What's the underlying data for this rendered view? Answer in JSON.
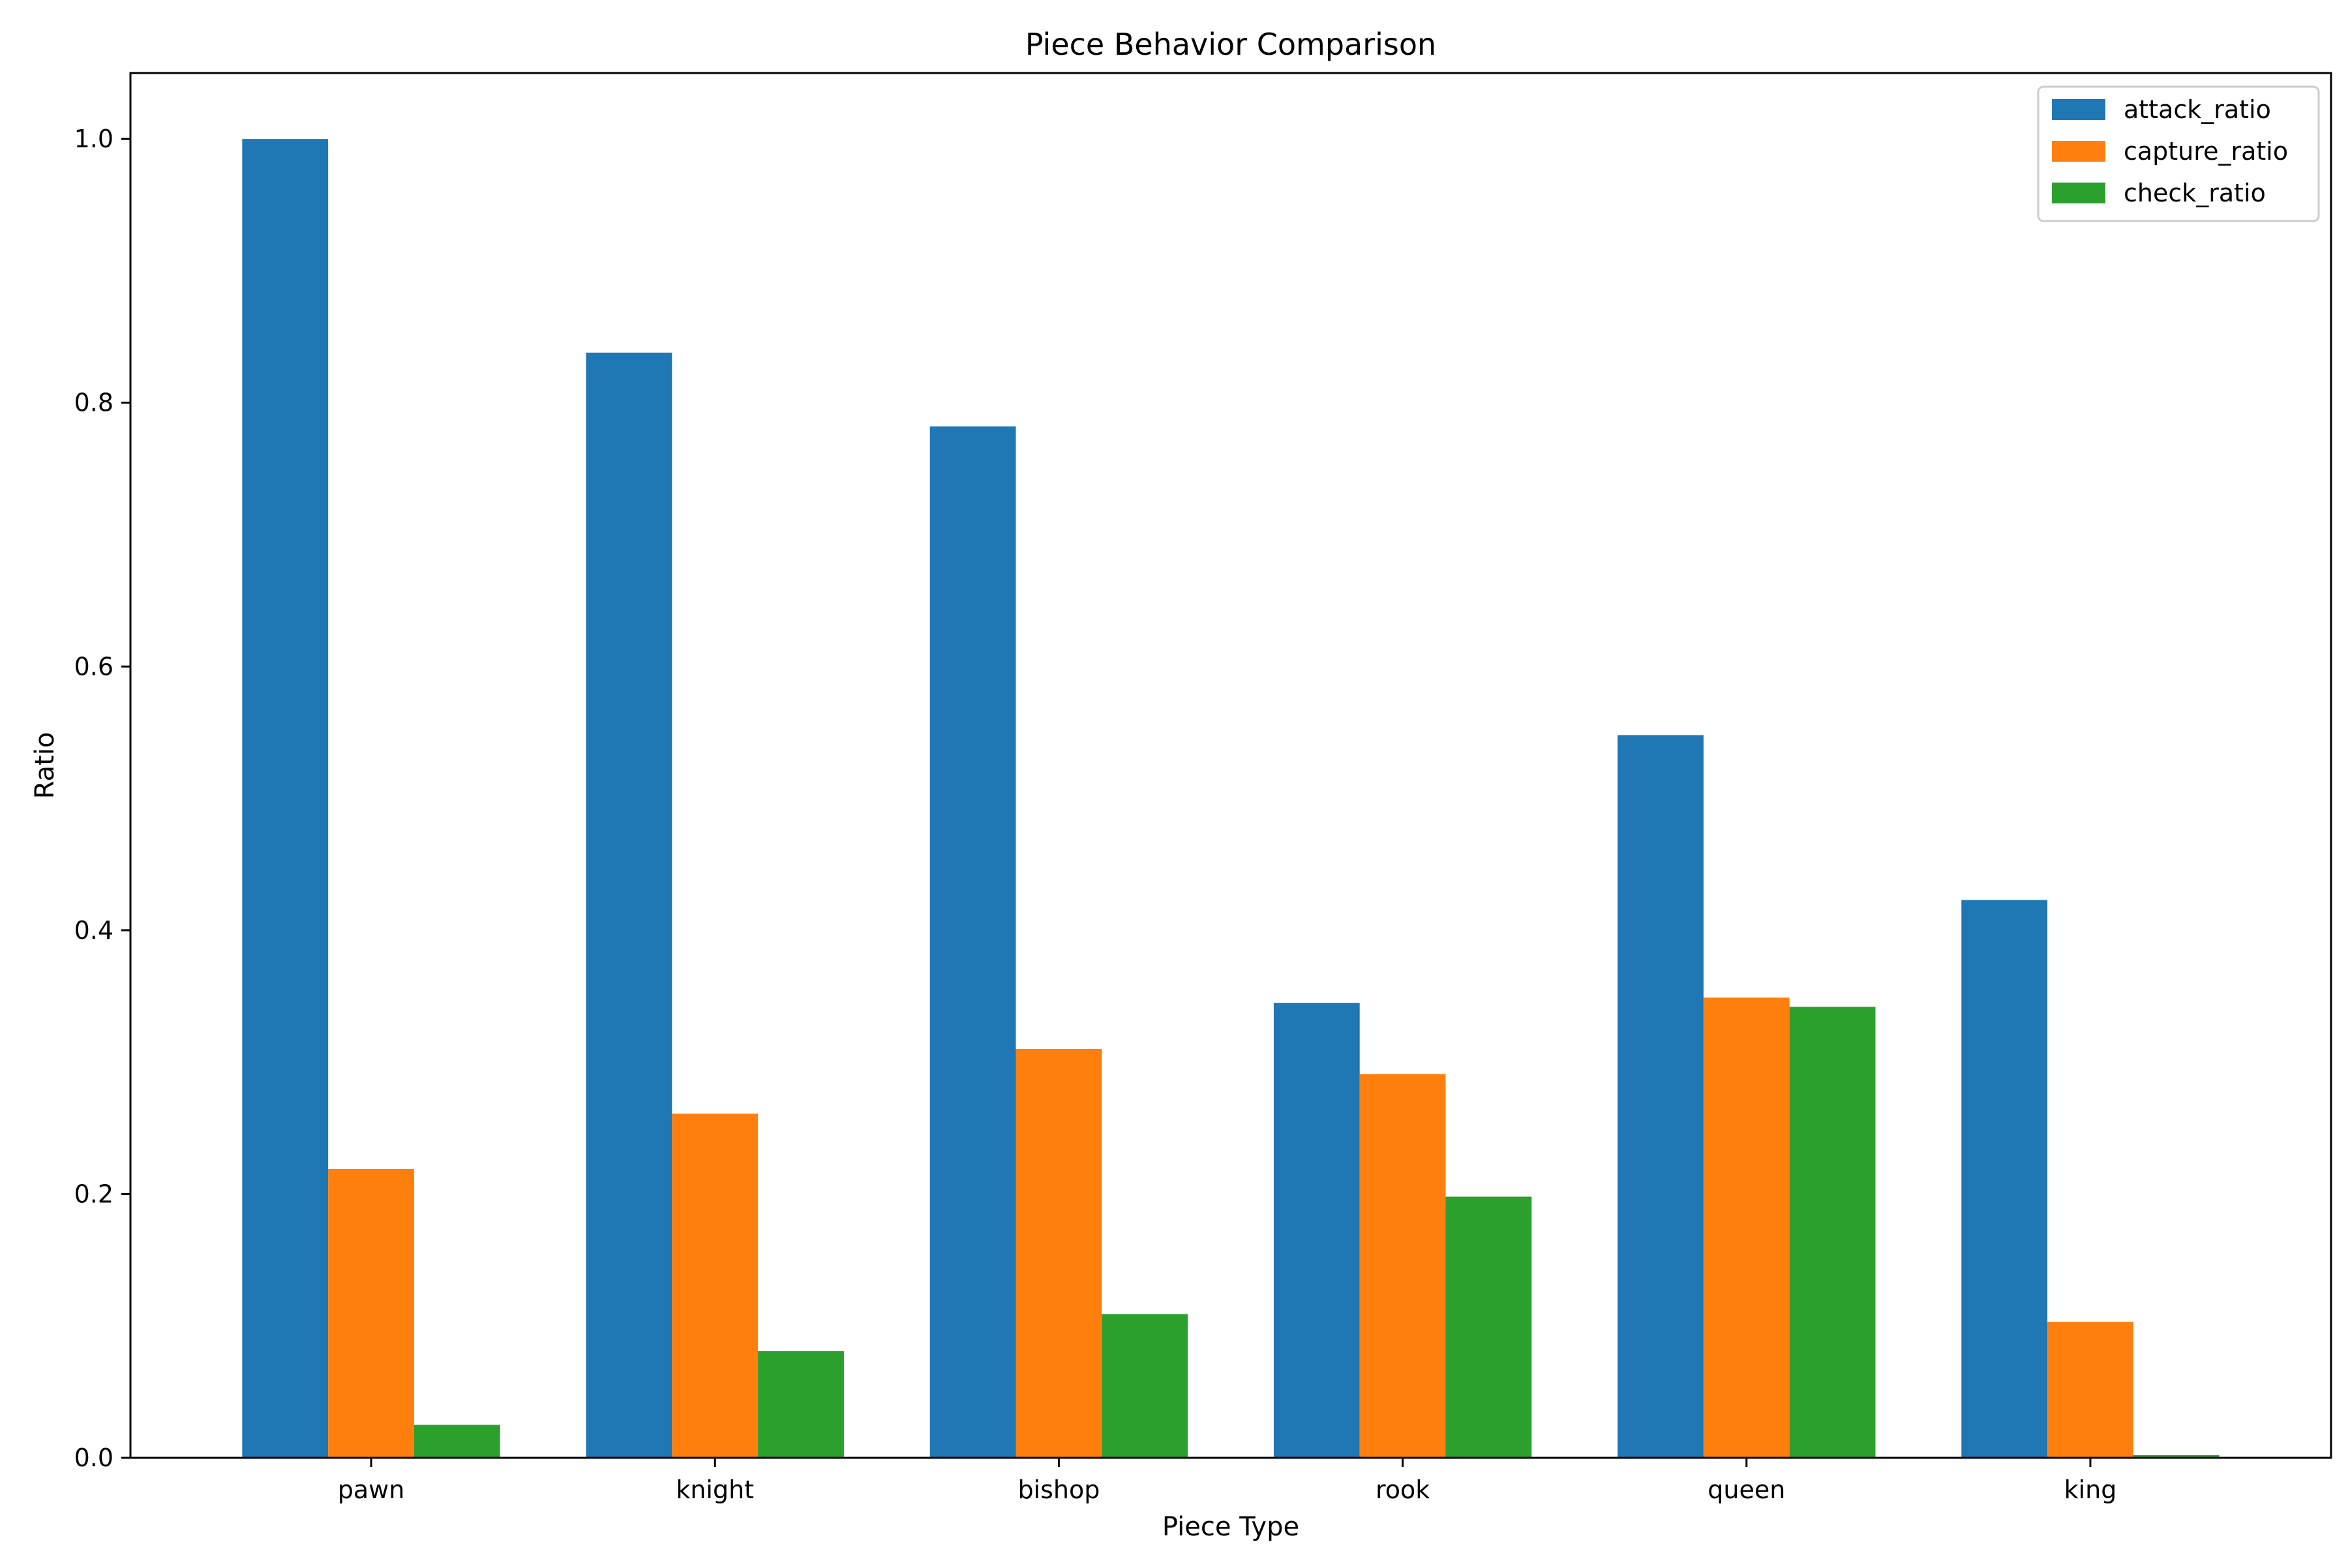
{
  "chart_data": {
    "type": "bar",
    "title": "Piece Behavior Comparison",
    "xlabel": "Piece Type",
    "ylabel": "Ratio",
    "categories": [
      "pawn",
      "knight",
      "bishop",
      "rook",
      "queen",
      "king"
    ],
    "series": [
      {
        "name": "attack_ratio",
        "color": "#1f77b4",
        "values": [
          1.0,
          0.838,
          0.782,
          0.345,
          0.548,
          0.423
        ]
      },
      {
        "name": "capture_ratio",
        "color": "#ff7f0e",
        "values": [
          0.219,
          0.261,
          0.31,
          0.291,
          0.349,
          0.103
        ]
      },
      {
        "name": "check_ratio",
        "color": "#2ca02c",
        "values": [
          0.025,
          0.081,
          0.109,
          0.198,
          0.342,
          0.002
        ]
      }
    ],
    "ylim": [
      0,
      1.05
    ],
    "yticks": [
      0.0,
      0.2,
      0.4,
      0.6,
      0.8,
      1.0
    ],
    "ytick_labels": [
      "0.0",
      "0.2",
      "0.4",
      "0.6",
      "0.8",
      "1.0"
    ],
    "grid": false,
    "legend_position": "top-right"
  }
}
